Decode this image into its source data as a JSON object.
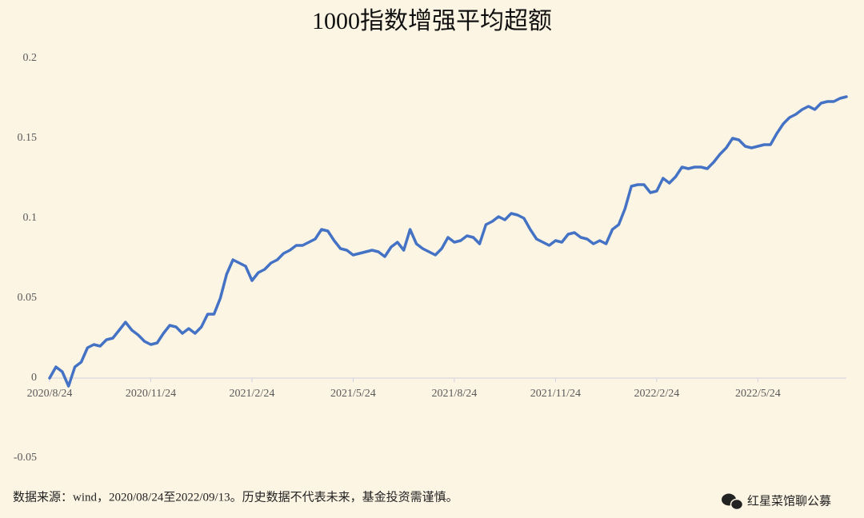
{
  "chart_data": {
    "type": "line",
    "title": "1000指数增强平均超额",
    "categories": [
      "2020/8/24",
      null,
      null,
      null,
      null,
      null,
      null,
      null,
      null,
      null,
      null,
      null,
      null,
      null,
      null,
      null,
      "2020/11/24",
      null,
      null,
      null,
      null,
      null,
      null,
      null,
      null,
      null,
      null,
      null,
      null,
      null,
      null,
      null,
      "2021/2/24",
      null,
      null,
      null,
      null,
      null,
      null,
      null,
      null,
      null,
      null,
      null,
      null,
      null,
      null,
      null,
      "2021/5/24",
      null,
      null,
      null,
      null,
      null,
      null,
      null,
      null,
      null,
      null,
      null,
      null,
      null,
      null,
      null,
      "2021/8/24",
      null,
      null,
      null,
      null,
      null,
      null,
      null,
      null,
      null,
      null,
      null,
      null,
      null,
      null,
      null,
      "2021/11/24",
      null,
      null,
      null,
      null,
      null,
      null,
      null,
      null,
      null,
      null,
      null,
      null,
      null,
      null,
      null,
      "2022/2/24",
      null,
      null,
      null,
      null,
      null,
      null,
      null,
      null,
      null,
      null,
      null,
      null,
      null,
      null,
      null,
      "2022/5/24",
      null,
      null,
      null,
      null,
      null,
      null,
      null,
      null,
      null,
      null,
      null,
      null,
      null,
      null
    ],
    "values": [
      0.0,
      0.007,
      0.004,
      -0.005,
      0.007,
      0.01,
      0.019,
      0.021,
      0.02,
      0.024,
      0.025,
      0.03,
      0.035,
      0.03,
      0.027,
      0.023,
      0.021,
      0.022,
      0.028,
      0.033,
      0.032,
      0.028,
      0.031,
      0.028,
      0.032,
      0.04,
      0.04,
      0.05,
      0.065,
      0.074,
      0.072,
      0.07,
      0.061,
      0.066,
      0.068,
      0.072,
      0.074,
      0.078,
      0.08,
      0.083,
      0.083,
      0.085,
      0.087,
      0.093,
      0.092,
      0.086,
      0.081,
      0.08,
      0.077,
      0.078,
      0.079,
      0.08,
      0.079,
      0.076,
      0.082,
      0.085,
      0.08,
      0.093,
      0.084,
      0.081,
      0.079,
      0.077,
      0.081,
      0.088,
      0.085,
      0.086,
      0.089,
      0.088,
      0.084,
      0.096,
      0.098,
      0.101,
      0.099,
      0.103,
      0.102,
      0.1,
      0.093,
      0.087,
      0.085,
      0.083,
      0.086,
      0.085,
      0.09,
      0.091,
      0.088,
      0.087,
      0.084,
      0.086,
      0.084,
      0.093,
      0.096,
      0.106,
      0.12,
      0.121,
      0.121,
      0.116,
      0.117,
      0.125,
      0.122,
      0.126,
      0.132,
      0.131,
      0.132,
      0.132,
      0.131,
      0.135,
      0.14,
      0.144,
      0.15,
      0.149,
      0.145,
      0.144,
      0.145,
      0.146,
      0.146,
      0.153,
      0.159,
      0.163,
      0.165,
      0.168,
      0.17,
      0.168,
      0.172,
      0.173,
      0.173,
      0.175,
      0.176
    ],
    "color": "#4472c4",
    "ylim": [
      -0.05,
      0.2
    ],
    "yticks": [
      -0.05,
      0,
      0.05,
      0.1,
      0.15,
      0.2
    ],
    "grid": false,
    "source_note": "数据来源：wind，2020/08/24至2022/09/13。历史数据不代表未来，基金投资需谨慎。",
    "watermark": "红星菜馆聊公募"
  }
}
